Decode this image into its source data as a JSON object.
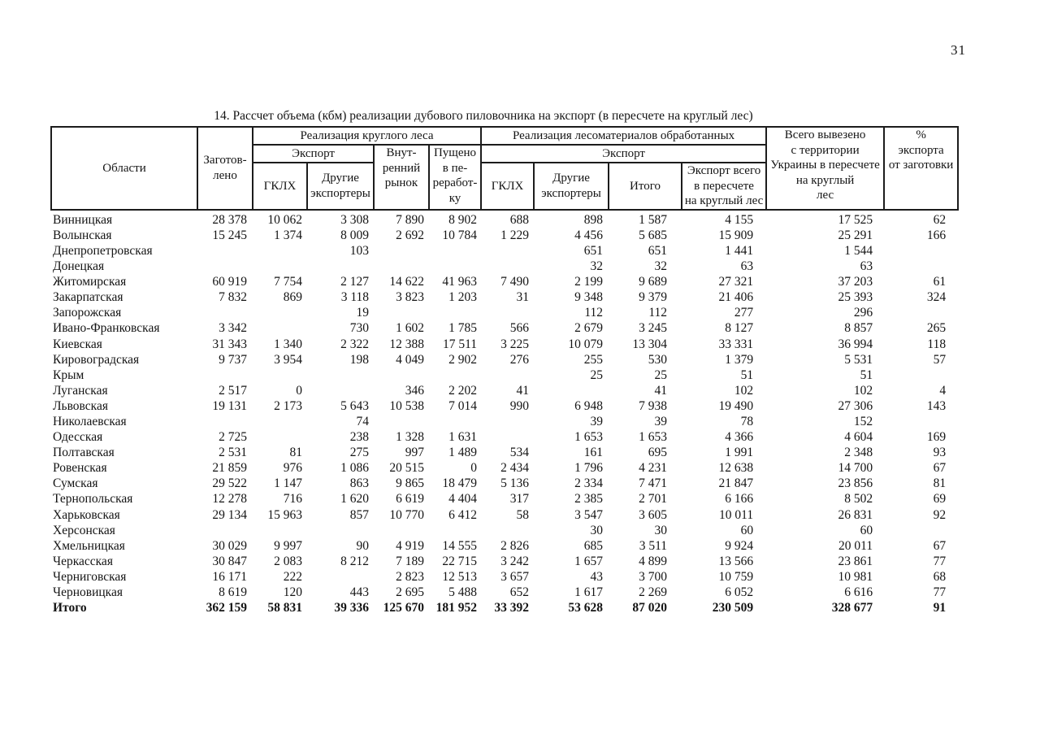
{
  "page": {
    "number": "31"
  },
  "table": {
    "title": "14. Рассчет объема (кбм) реализации дубового пиловочника на экспорт (в пересчете на круглый лес)",
    "header": {
      "oblasti": "Области",
      "zagotovleno": "Заготов-\nлено",
      "group_round_wood": "Реализация круглого леса",
      "export_left": "Экспорт",
      "gklh_left": "ГКЛХ",
      "other_exporters_left": "Другие\nэкспортеры",
      "domestic_market": "Внут-\nренний\nрынок",
      "processing": "Пущено\nв пе-\nреработ-\nку",
      "group_processed": "Реализация лесоматериалов обработанных",
      "export_right": "Экспорт",
      "gklh_right": "ГКЛХ",
      "other_exporters_right": "Другие\nэкспортеры",
      "itogo": "Итого",
      "export_total_roundwood": "Экспорт всего\nв пересчете\nна круглый лес",
      "total_exported": "Всего вывезено\nс территории\nУкраины в пересчете\nна круглый\nлес",
      "percent_export": "%\nэкспорта\nот заготовки"
    },
    "rows": [
      {
        "name": "Винницкая",
        "values": [
          "28 378",
          "10 062",
          "3 308",
          "7 890",
          "8 902",
          "688",
          "898",
          "1 587",
          "4 155",
          "17 525",
          "62"
        ]
      },
      {
        "name": "Волынская",
        "values": [
          "15 245",
          "1 374",
          "8 009",
          "2 692",
          "10 784",
          "1 229",
          "4 456",
          "5 685",
          "15 909",
          "25 291",
          "166"
        ]
      },
      {
        "name": "Днепропетровская",
        "values": [
          "",
          "",
          "103",
          "",
          "",
          "",
          "651",
          "651",
          "1 441",
          "1 544",
          ""
        ]
      },
      {
        "name": "Донецкая",
        "values": [
          "",
          "",
          "",
          "",
          "",
          "",
          "32",
          "32",
          "63",
          "63",
          ""
        ]
      },
      {
        "name": "Житомирская",
        "values": [
          "60 919",
          "7 754",
          "2 127",
          "14 622",
          "41 963",
          "7 490",
          "2 199",
          "9 689",
          "27 321",
          "37 203",
          "61"
        ]
      },
      {
        "name": "Закарпатская",
        "values": [
          "7 832",
          "869",
          "3 118",
          "3 823",
          "1 203",
          "31",
          "9 348",
          "9 379",
          "21 406",
          "25 393",
          "324"
        ]
      },
      {
        "name": "Запорожская",
        "values": [
          "",
          "",
          "19",
          "",
          "",
          "",
          "112",
          "112",
          "277",
          "296",
          ""
        ]
      },
      {
        "name": "Ивано-Франковская",
        "values": [
          "3 342",
          "",
          "730",
          "1 602",
          "1 785",
          "566",
          "2 679",
          "3 245",
          "8 127",
          "8 857",
          "265"
        ]
      },
      {
        "name": "Киевская",
        "values": [
          "31 343",
          "1 340",
          "2 322",
          "12 388",
          "17 511",
          "3 225",
          "10 079",
          "13 304",
          "33 331",
          "36 994",
          "118"
        ]
      },
      {
        "name": "Кировоградская",
        "values": [
          "9 737",
          "3 954",
          "198",
          "4 049",
          "2 902",
          "276",
          "255",
          "530",
          "1 379",
          "5 531",
          "57"
        ]
      },
      {
        "name": "Крым",
        "values": [
          "",
          "",
          "",
          "",
          "",
          "",
          "25",
          "25",
          "51",
          "51",
          ""
        ]
      },
      {
        "name": "Луганская",
        "values": [
          "2 517",
          "0",
          "",
          "346",
          "2 202",
          "41",
          "",
          "41",
          "102",
          "102",
          "4"
        ]
      },
      {
        "name": "Львовская",
        "values": [
          "19 131",
          "2 173",
          "5 643",
          "10 538",
          "7 014",
          "990",
          "6 948",
          "7 938",
          "19 490",
          "27 306",
          "143"
        ]
      },
      {
        "name": "Николаевская",
        "values": [
          "",
          "",
          "74",
          "",
          "",
          "",
          "39",
          "39",
          "78",
          "152",
          ""
        ]
      },
      {
        "name": "Одесская",
        "values": [
          "2 725",
          "",
          "238",
          "1 328",
          "1 631",
          "",
          "1 653",
          "1 653",
          "4 366",
          "4 604",
          "169"
        ]
      },
      {
        "name": "Полтавская",
        "values": [
          "2 531",
          "81",
          "275",
          "997",
          "1 489",
          "534",
          "161",
          "695",
          "1 991",
          "2 348",
          "93"
        ]
      },
      {
        "name": "Ровенская",
        "values": [
          "21 859",
          "976",
          "1 086",
          "20 515",
          "0",
          "2 434",
          "1 796",
          "4 231",
          "12 638",
          "14 700",
          "67"
        ]
      },
      {
        "name": "Сумская",
        "values": [
          "29 522",
          "1 147",
          "863",
          "9 865",
          "18 479",
          "5 136",
          "2 334",
          "7 471",
          "21 847",
          "23 856",
          "81"
        ]
      },
      {
        "name": "Тернопольская",
        "values": [
          "12 278",
          "716",
          "1 620",
          "6 619",
          "4 404",
          "317",
          "2 385",
          "2 701",
          "6 166",
          "8 502",
          "69"
        ]
      },
      {
        "name": "Харьковская",
        "values": [
          "29 134",
          "15 963",
          "857",
          "10 770",
          "6 412",
          "58",
          "3 547",
          "3 605",
          "10 011",
          "26 831",
          "92"
        ]
      },
      {
        "name": "Херсонская",
        "values": [
          "",
          "",
          "",
          "",
          "",
          "",
          "30",
          "30",
          "60",
          "60",
          ""
        ]
      },
      {
        "name": "Хмельницкая",
        "values": [
          "30 029",
          "9 997",
          "90",
          "4 919",
          "14 555",
          "2 826",
          "685",
          "3 511",
          "9 924",
          "20 011",
          "67"
        ]
      },
      {
        "name": "Черкасская",
        "values": [
          "30 847",
          "2 083",
          "8 212",
          "7 189",
          "22 715",
          "3 242",
          "1 657",
          "4 899",
          "13 566",
          "23 861",
          "77"
        ]
      },
      {
        "name": "Черниговская",
        "values": [
          "16 171",
          "222",
          "",
          "2 823",
          "12 513",
          "3 657",
          "43",
          "3 700",
          "10 759",
          "10 981",
          "68"
        ]
      },
      {
        "name": "Черновицкая",
        "values": [
          "8 619",
          "120",
          "443",
          "2 695",
          "5 488",
          "652",
          "1 617",
          "2 269",
          "6 052",
          "6 616",
          "77"
        ]
      }
    ],
    "total": {
      "name": "Итого",
      "values": [
        "362 159",
        "58 831",
        "39 336",
        "125 670",
        "181 952",
        "33 392",
        "53 628",
        "87 020",
        "230 509",
        "328 677",
        "91"
      ]
    }
  }
}
